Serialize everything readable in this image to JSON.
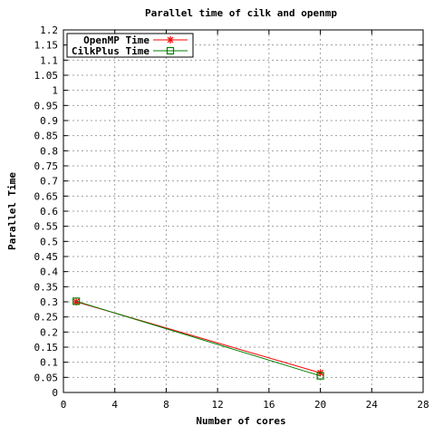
{
  "chart_data": {
    "type": "line",
    "title": "Parallel time of cilk and openmp",
    "xlabel": "Number of cores",
    "ylabel": "Parallel Time",
    "xlim": [
      0,
      28
    ],
    "ylim": [
      0,
      1.2
    ],
    "x_ticks": [
      0,
      4,
      8,
      12,
      16,
      20,
      24,
      28
    ],
    "y_ticks": [
      0,
      0.05,
      0.1,
      0.15,
      0.2,
      0.25,
      0.3,
      0.35,
      0.4,
      0.45,
      0.5,
      0.55,
      0.6,
      0.65,
      0.7,
      0.75,
      0.8,
      0.85,
      0.9,
      0.95,
      1,
      1.05,
      1.1,
      1.15,
      1.2
    ],
    "y_tick_labels": [
      "0",
      "0.05",
      "0.1",
      "0.15",
      "0.2",
      "0.25",
      "0.3",
      "0.35",
      "0.4",
      "0.45",
      "0.5",
      "0.55",
      "0.6",
      "0.65",
      "0.7",
      "0.75",
      "0.8",
      "0.85",
      "0.9",
      "0.95",
      "1",
      "1.05",
      "1.1",
      "1.15",
      "1.2"
    ],
    "grid": true,
    "legend_position": "top-left",
    "series": [
      {
        "name": "OpenMP Time",
        "x": [
          1,
          20
        ],
        "y": [
          0.3,
          0.065
        ],
        "color": "#ff0000",
        "marker": "star"
      },
      {
        "name": "CilkPlus Time",
        "x": [
          1,
          20
        ],
        "y": [
          0.302,
          0.055
        ],
        "color": "#008000",
        "marker": "square"
      }
    ]
  }
}
